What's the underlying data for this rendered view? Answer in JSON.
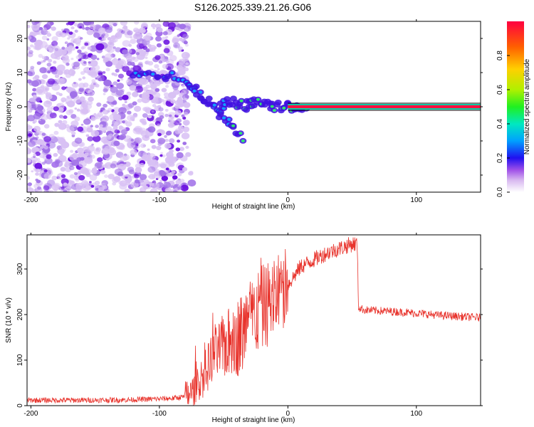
{
  "title": "S126.2025.339.21.26.G06",
  "chart_data": [
    {
      "type": "heatmap",
      "name": "spectrogram",
      "xlabel": "Height of straight line (km)",
      "ylabel": "Frequency (Hz)",
      "xlim": [
        -203,
        150
      ],
      "ylim": [
        -25,
        25
      ],
      "xticks": [
        -200,
        -100,
        0,
        100
      ],
      "yticks": [
        -20,
        -10,
        0,
        10,
        20
      ],
      "noise_region_x": [
        -203,
        -78
      ],
      "ridge": {
        "x": [
          -120,
          -110,
          -100,
          -90,
          -80,
          -75,
          -70,
          -65,
          -60,
          -55,
          -50,
          -45,
          -40,
          -35,
          -30,
          -25,
          -20,
          -15,
          -10,
          -5,
          0,
          5,
          10,
          15
        ],
        "y": [
          10,
          9,
          9,
          9,
          8,
          6,
          4,
          2,
          1,
          0,
          1,
          2,
          1,
          0,
          1,
          1,
          2,
          0,
          0,
          0,
          0,
          0,
          0,
          0
        ]
      },
      "branch": {
        "x": [
          -55,
          -50,
          -45,
          -40,
          -35
        ],
        "y": [
          -2,
          -3,
          -5,
          -7,
          -10
        ]
      },
      "carrier": {
        "x_start": 0,
        "x_end": 150,
        "frequency": 0
      },
      "colorbar": {
        "label": "Normalized spectral amplitude",
        "range": [
          0.0,
          1.0
        ],
        "ticks": [
          "0.0",
          "0.2",
          "0.4",
          "0.6",
          "0.8"
        ]
      }
    },
    {
      "type": "line",
      "name": "snr",
      "xlabel": "Height of straight line (km)",
      "ylabel": "SNR (10 * v/v)",
      "xlim": [
        -203,
        150
      ],
      "ylim": [
        0,
        375
      ],
      "xticks": [
        -200,
        -100,
        0,
        100
      ],
      "yticks": [
        0,
        100,
        200,
        300
      ],
      "series": [
        {
          "name": "SNR",
          "color": "#e8332c",
          "x": [
            -203,
            -180,
            -150,
            -120,
            -100,
            -90,
            -80,
            -75,
            -70,
            -65,
            -60,
            -55,
            -50,
            -45,
            -40,
            -35,
            -30,
            -25,
            -20,
            -15,
            -10,
            -5,
            0,
            5,
            10,
            20,
            30,
            40,
            50,
            54,
            55,
            60,
            80,
            100,
            120,
            150
          ],
          "y": [
            12,
            12,
            12,
            13,
            15,
            16,
            20,
            28,
            45,
            70,
            95,
            115,
            130,
            140,
            150,
            160,
            185,
            200,
            215,
            225,
            240,
            255,
            265,
            285,
            305,
            320,
            335,
            345,
            355,
            355,
            215,
            210,
            207,
            203,
            198,
            193
          ]
        }
      ]
    }
  ]
}
